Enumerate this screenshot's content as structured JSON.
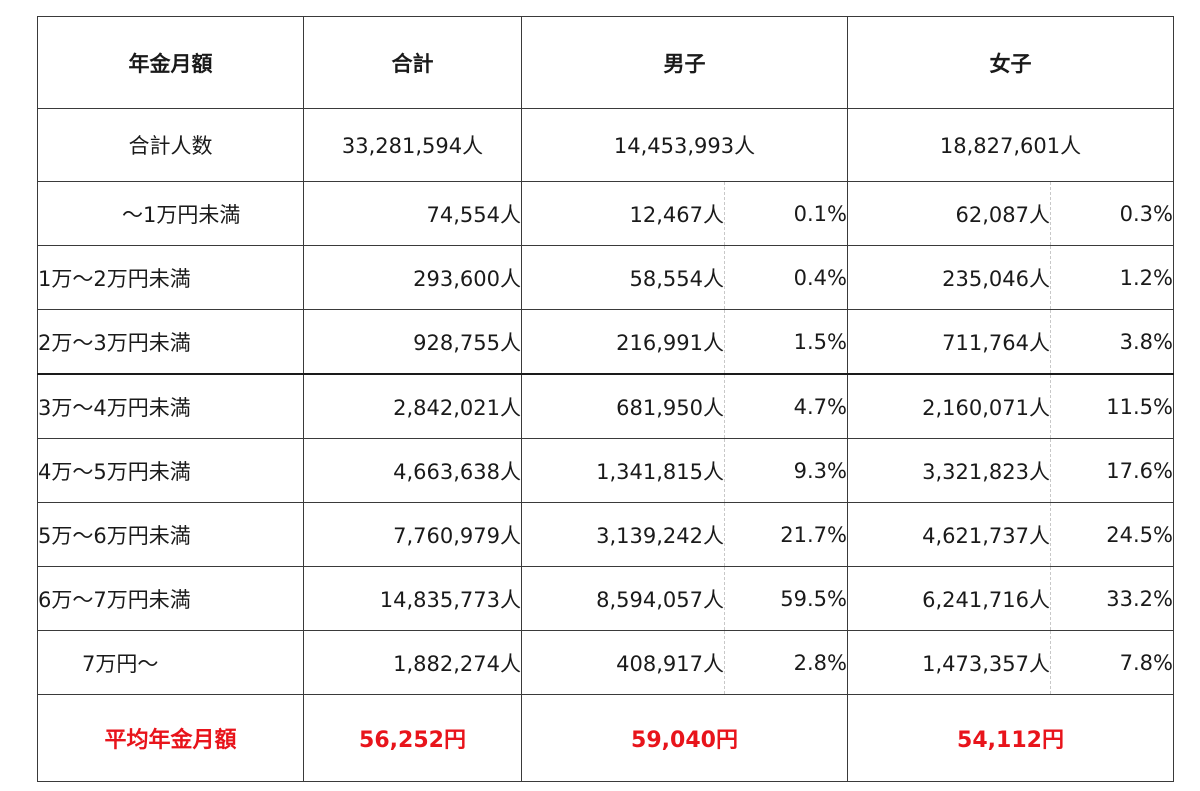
{
  "header": {
    "col_label": "年金月額",
    "col_total": "合計",
    "col_male": "男子",
    "col_female": "女子"
  },
  "total_count_row": {
    "label": "合計人数",
    "total": "33,281,594人",
    "male": "14,453,993人",
    "female": "18,827,601人"
  },
  "rows": [
    {
      "label": "～1万円未満",
      "total": "74,554人",
      "male": "12,467人",
      "male_pct": "0.1%",
      "female": "62,087人",
      "female_pct": "0.3%"
    },
    {
      "label": "1万～2万円未満",
      "total": "293,600人",
      "male": "58,554人",
      "male_pct": "0.4%",
      "female": "235,046人",
      "female_pct": "1.2%"
    },
    {
      "label": "2万～3万円未満",
      "total": "928,755人",
      "male": "216,991人",
      "male_pct": "1.5%",
      "female": "711,764人",
      "female_pct": "3.8%"
    },
    {
      "label": "3万～4万円未満",
      "total": "2,842,021人",
      "male": "681,950人",
      "male_pct": "4.7%",
      "female": "2,160,071人",
      "female_pct": "11.5%"
    },
    {
      "label": "4万～5万円未満",
      "total": "4,663,638人",
      "male": "1,341,815人",
      "male_pct": "9.3%",
      "female": "3,321,823人",
      "female_pct": "17.6%"
    },
    {
      "label": "5万～6万円未満",
      "total": "7,760,979人",
      "male": "3,139,242人",
      "male_pct": "21.7%",
      "female": "4,621,737人",
      "female_pct": "24.5%"
    },
    {
      "label": "6万～7万円未満",
      "total": "14,835,773人",
      "male": "8,594,057人",
      "male_pct": "59.5%",
      "female": "6,241,716人",
      "female_pct": "33.2%"
    },
    {
      "label": "7万円～",
      "total": "1,882,274人",
      "male": "408,917人",
      "male_pct": "2.8%",
      "female": "1,473,357人",
      "female_pct": "7.8%"
    }
  ],
  "average_row": {
    "label": "平均年金月額",
    "total": "56,252円",
    "male": "59,040円",
    "female": "54,112円"
  },
  "colors": {
    "highlight": "#e8141b",
    "border": "#3a3a3a"
  }
}
